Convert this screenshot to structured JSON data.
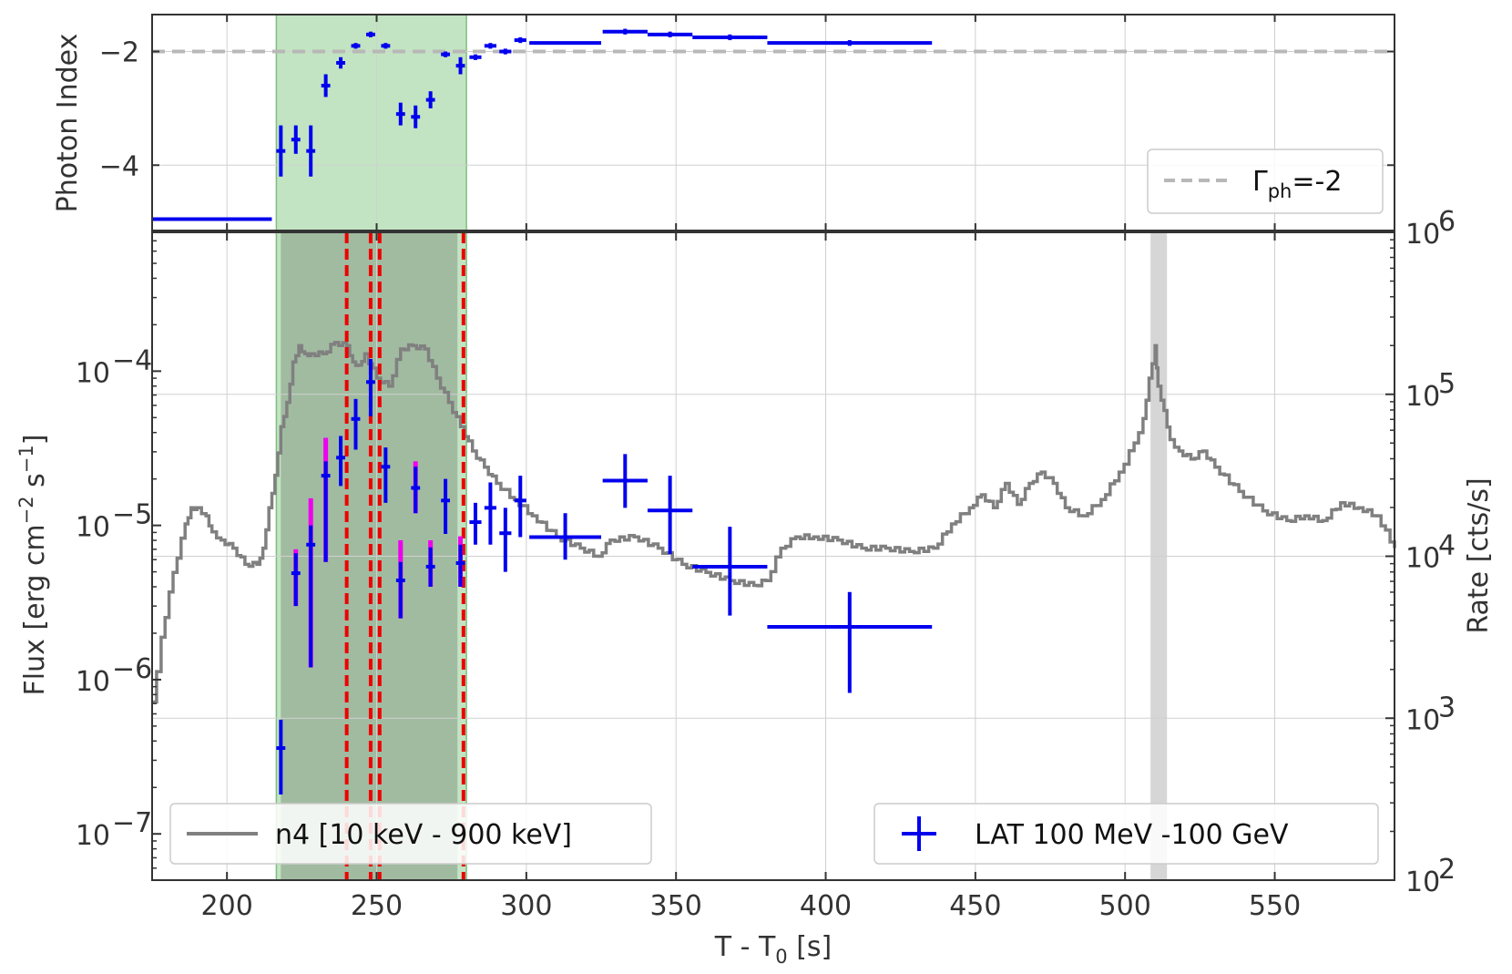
{
  "colors": {
    "lat": "#0000ee",
    "lat_upper_err": "#ee00ee",
    "rate_curve": "#808080",
    "green_band": "#a8d8a8",
    "dark_band": "#8aa08a",
    "red_lines": "#ee0000",
    "ref_line": "#b8b8b8",
    "grid": "#d0d0d0",
    "gray_band": "#cccccc"
  },
  "chart_data": [
    {
      "type": "scatter",
      "panel": "top",
      "ylabel": "Photon Index",
      "xlim": [
        175,
        590
      ],
      "ylim": [
        -5.15,
        -1.35
      ],
      "yticks": [
        {
          "value": -2,
          "label": "−2"
        },
        {
          "value": -4,
          "label": "−4"
        }
      ],
      "legend": {
        "label_prefix": "Γ",
        "label_sub": "ph",
        "label_suffix": "=-2",
        "placement": "lower-right"
      },
      "reference_line": -2,
      "series": [
        {
          "points": [
            {
              "x": 195,
              "xerr": 20,
              "y": -4.95,
              "yerr": 0
            },
            {
              "x": 218,
              "xerr": 1.5,
              "y": -3.75,
              "yerr": 0.45
            },
            {
              "x": 223,
              "xerr": 1.5,
              "y": -3.55,
              "yerr": 0.25
            },
            {
              "x": 228,
              "xerr": 1.5,
              "y": -3.75,
              "yerr": 0.45
            },
            {
              "x": 233,
              "xerr": 1.5,
              "y": -2.6,
              "yerr": 0.2
            },
            {
              "x": 238,
              "xerr": 1.5,
              "y": -2.2,
              "yerr": 0.1
            },
            {
              "x": 243,
              "xerr": 1.5,
              "y": -1.9,
              "yerr": 0.05
            },
            {
              "x": 248,
              "xerr": 1.5,
              "y": -1.7,
              "yerr": 0.05
            },
            {
              "x": 253,
              "xerr": 1.5,
              "y": -1.9,
              "yerr": 0.05
            },
            {
              "x": 258,
              "xerr": 1.5,
              "y": -3.1,
              "yerr": 0.2
            },
            {
              "x": 263,
              "xerr": 1.5,
              "y": -3.15,
              "yerr": 0.2
            },
            {
              "x": 268,
              "xerr": 1.5,
              "y": -2.85,
              "yerr": 0.15
            },
            {
              "x": 273,
              "xerr": 1.5,
              "y": -2.05,
              "yerr": 0.05
            },
            {
              "x": 278,
              "xerr": 1.5,
              "y": -2.25,
              "yerr": 0.15
            },
            {
              "x": 283,
              "xerr": 2,
              "y": -2.1,
              "yerr": 0.05
            },
            {
              "x": 288,
              "xerr": 2,
              "y": -1.9,
              "yerr": 0.05
            },
            {
              "x": 293,
              "xerr": 2,
              "y": -2.0,
              "yerr": 0.05
            },
            {
              "x": 298,
              "xerr": 2,
              "y": -1.8,
              "yerr": 0.05
            },
            {
              "x": 313,
              "xerr": 12,
              "y": -1.85,
              "yerr": 0
            },
            {
              "x": 333,
              "xerr": 7.5,
              "y": -1.65,
              "yerr": 0.05
            },
            {
              "x": 348,
              "xerr": 7.5,
              "y": -1.7,
              "yerr": 0.05
            },
            {
              "x": 368,
              "xerr": 12.5,
              "y": -1.75,
              "yerr": 0.05
            },
            {
              "x": 408,
              "xerr": 27.5,
              "y": -1.85,
              "yerr": 0.05
            }
          ]
        }
      ]
    },
    {
      "type": "scatter",
      "panel": "bottom",
      "xlabel_main": "T - T",
      "xlabel_sub": "0",
      "xlabel_suffix": " [s]",
      "ylabel_left_main": "Flux [erg cm",
      "ylabel_left_sup1": "−2",
      "ylabel_left_mid": " s",
      "ylabel_left_sup2": "−1",
      "ylabel_left_end": "]",
      "ylabel_right": "Rate [cts/s]",
      "xlim": [
        175,
        590
      ],
      "xticks": [
        200,
        250,
        300,
        350,
        400,
        450,
        500,
        550
      ],
      "ylim_left_log10": [
        -7.3,
        -3.1
      ],
      "ylim_right_log10": [
        2,
        6
      ],
      "left_ticks": [
        {
          "exp": -4,
          "base": "10",
          "sup": "−4"
        },
        {
          "exp": -5,
          "base": "10",
          "sup": "−5"
        },
        {
          "exp": -6,
          "base": "10",
          "sup": "−6"
        },
        {
          "exp": -7,
          "base": "10",
          "sup": "−7"
        }
      ],
      "right_ticks": [
        {
          "exp": 6,
          "base": "10",
          "sup": "6"
        },
        {
          "exp": 5,
          "base": "10",
          "sup": "5"
        },
        {
          "exp": 4,
          "base": "10",
          "sup": "4"
        },
        {
          "exp": 3,
          "base": "10",
          "sup": "3"
        },
        {
          "exp": 2,
          "base": "10",
          "sup": "2"
        }
      ],
      "shaded_intervals": {
        "green": [
          216.5,
          280
        ],
        "dark": [
          218,
          277
        ],
        "gray": [
          508.5,
          514
        ]
      },
      "red_dashed_lines": [
        240,
        248,
        251,
        279
      ],
      "legend_rate": {
        "label": "n4 [10 keV - 900 keV]",
        "placement": "lower-left"
      },
      "legend_lat": {
        "label": "LAT 100 MeV -100 GeV",
        "placement": "lower-right"
      },
      "rate_curve": {
        "name": "n4 [10 keV - 900 keV]",
        "x": [
          175,
          178,
          182,
          186,
          188,
          190,
          193,
          195,
          198,
          202,
          206,
          210,
          212,
          214,
          216,
          218,
          220,
          222,
          224,
          226,
          228,
          232,
          236,
          240,
          242,
          244,
          246,
          250,
          254,
          258,
          262,
          266,
          270,
          274,
          278,
          282,
          286,
          290,
          296,
          302,
          310,
          318,
          324,
          328,
          336,
          344,
          352,
          360,
          368,
          376,
          380,
          385,
          390,
          396,
          404,
          412,
          420,
          428,
          436,
          442,
          448,
          452,
          456,
          460,
          464,
          468,
          472,
          476,
          480,
          486,
          492,
          498,
          503,
          506,
          508,
          510,
          511,
          513,
          515,
          518,
          522,
          526,
          530,
          538,
          546,
          554,
          560,
          566,
          572,
          578,
          584,
          590
        ],
        "log10_rate": [
          3.1,
          3.5,
          3.9,
          4.2,
          4.3,
          4.3,
          4.25,
          4.15,
          4.1,
          4.05,
          3.95,
          3.95,
          4.05,
          4.3,
          4.5,
          4.8,
          4.95,
          5.2,
          5.3,
          5.25,
          5.25,
          5.25,
          5.32,
          5.3,
          5.2,
          5.18,
          5.25,
          5.1,
          5.05,
          5.28,
          5.3,
          5.28,
          5.1,
          4.95,
          4.8,
          4.65,
          4.55,
          4.45,
          4.35,
          4.25,
          4.12,
          4.05,
          4.0,
          4.1,
          4.12,
          4.05,
          3.95,
          3.9,
          3.85,
          3.82,
          3.85,
          4.05,
          4.12,
          4.12,
          4.1,
          4.05,
          4.05,
          4.03,
          4.05,
          4.2,
          4.3,
          4.38,
          4.3,
          4.45,
          4.32,
          4.45,
          4.52,
          4.45,
          4.3,
          4.25,
          4.35,
          4.52,
          4.7,
          4.85,
          5.1,
          5.3,
          5.05,
          4.9,
          4.72,
          4.65,
          4.6,
          4.65,
          4.55,
          4.4,
          4.28,
          4.22,
          4.25,
          4.22,
          4.33,
          4.3,
          4.25,
          4.05
        ]
      },
      "lat_flux": [
        {
          "x": 218,
          "xerr": 1.5,
          "y": 3.6e-07,
          "ylo": 1.8e-07,
          "yhi": 5.5e-07,
          "hi_mag": 0
        },
        {
          "x": 223,
          "xerr": 1.5,
          "y": 4.9e-06,
          "ylo": 3e-06,
          "yhi": 6.6e-06,
          "hi_mag": 7e-06
        },
        {
          "x": 228,
          "xerr": 1.5,
          "y": 7.5e-06,
          "ylo": 1.2e-06,
          "yhi": 1e-05,
          "hi_mag": 1.5e-05
        },
        {
          "x": 233,
          "xerr": 1.5,
          "y": 2.1e-05,
          "ylo": 5.8e-06,
          "yhi": 2.6e-05,
          "hi_mag": 3.7e-05
        },
        {
          "x": 238,
          "xerr": 1.5,
          "y": 2.75e-05,
          "ylo": 1.8e-05,
          "yhi": 3.8e-05,
          "hi_mag": 0
        },
        {
          "x": 243,
          "xerr": 1.5,
          "y": 4.9e-05,
          "ylo": 3.1e-05,
          "yhi": 6.6e-05,
          "hi_mag": 0
        },
        {
          "x": 248,
          "xerr": 1.5,
          "y": 8.5e-05,
          "ylo": 5.1e-05,
          "yhi": 0.00012,
          "hi_mag": 0
        },
        {
          "x": 253,
          "xerr": 1.5,
          "y": 2.4e-05,
          "ylo": 1.4e-05,
          "yhi": 3.2e-05,
          "hi_mag": 0
        },
        {
          "x": 258,
          "xerr": 1.5,
          "y": 4.4e-06,
          "ylo": 2.5e-06,
          "yhi": 5.8e-06,
          "hi_mag": 8e-06
        },
        {
          "x": 263,
          "xerr": 1.5,
          "y": 1.75e-05,
          "ylo": 1.2e-05,
          "yhi": 2.4e-05,
          "hi_mag": 2.6e-05
        },
        {
          "x": 268,
          "xerr": 1.5,
          "y": 5.4e-06,
          "ylo": 4e-06,
          "yhi": 7.2e-06,
          "hi_mag": 8e-06
        },
        {
          "x": 273,
          "xerr": 1.5,
          "y": 1.45e-05,
          "ylo": 8.8e-06,
          "yhi": 2e-05,
          "hi_mag": 0
        },
        {
          "x": 278,
          "xerr": 1.5,
          "y": 5.7e-06,
          "ylo": 4e-06,
          "yhi": 7.5e-06,
          "hi_mag": 8.5e-06
        },
        {
          "x": 283,
          "xerr": 2,
          "y": 1.05e-05,
          "ylo": 7.5e-06,
          "yhi": 1.4e-05,
          "hi_mag": 0
        },
        {
          "x": 288,
          "xerr": 2,
          "y": 1.3e-05,
          "ylo": 7.5e-06,
          "yhi": 1.9e-05,
          "hi_mag": 0
        },
        {
          "x": 293,
          "xerr": 2,
          "y": 8.9e-06,
          "ylo": 5e-06,
          "yhi": 1.3e-05,
          "hi_mag": 0
        },
        {
          "x": 298,
          "xerr": 2,
          "y": 1.45e-05,
          "ylo": 8.4e-06,
          "yhi": 2.1e-05,
          "hi_mag": 0
        },
        {
          "x": 313,
          "xerr": 12,
          "y": 8.4e-06,
          "ylo": 6e-06,
          "yhi": 1.2e-05,
          "hi_mag": 0
        },
        {
          "x": 333,
          "xerr": 7.5,
          "y": 1.95e-05,
          "ylo": 1.3e-05,
          "yhi": 2.9e-05,
          "hi_mag": 0
        },
        {
          "x": 348,
          "xerr": 7.5,
          "y": 1.25e-05,
          "ylo": 6.5e-06,
          "yhi": 2.1e-05,
          "hi_mag": 0
        },
        {
          "x": 368,
          "xerr": 12.5,
          "y": 5.4e-06,
          "ylo": 2.6e-06,
          "yhi": 9.8e-06,
          "hi_mag": 0
        },
        {
          "x": 408,
          "xerr": 27.5,
          "y": 2.2e-06,
          "ylo": 8.2e-07,
          "yhi": 3.7e-06,
          "hi_mag": 0
        }
      ]
    }
  ]
}
